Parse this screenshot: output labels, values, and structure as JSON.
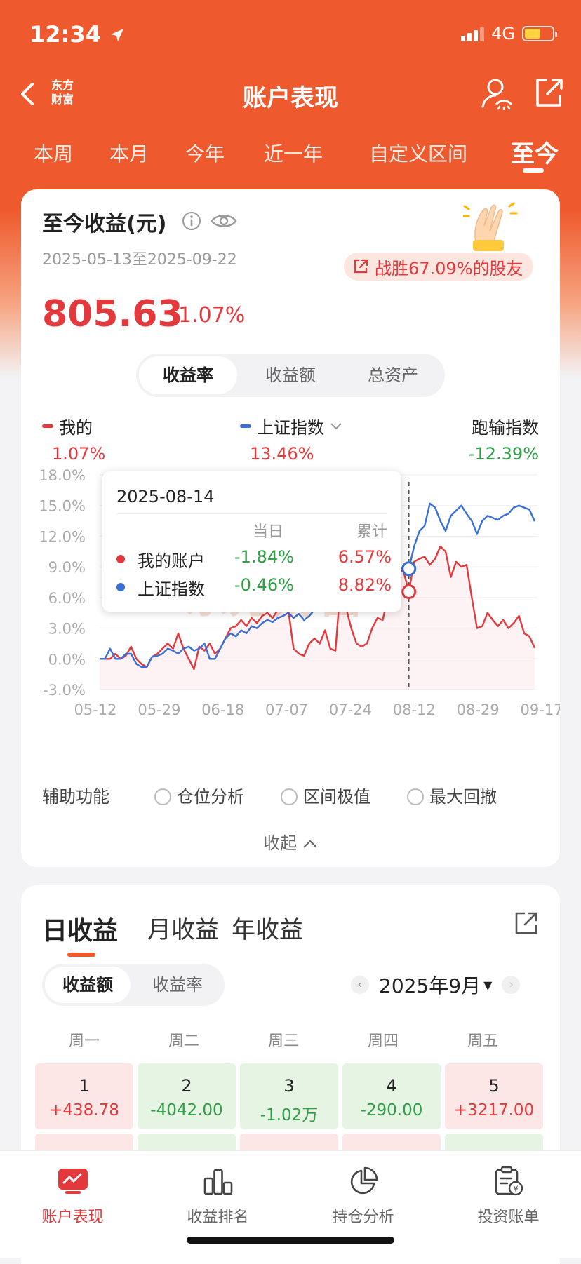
{
  "status": {
    "time": "12:34",
    "network": "4G"
  },
  "nav": {
    "title": "账户表现",
    "logo": "东方财富"
  },
  "ranges": [
    "本周",
    "本月",
    "今年",
    "近一年",
    "自定义区间",
    "至今"
  ],
  "summary": {
    "title": "至今收益(元)",
    "date_range": "2025-05-13至2025-09-22",
    "beat_text": "战胜67.09%的股友",
    "value": "805.63",
    "pct": "1.07%"
  },
  "segment": [
    "收益率",
    "收益额",
    "总资产"
  ],
  "legend": {
    "mine": {
      "label": "我的",
      "value": "1.07%"
    },
    "index": {
      "label": "上证指数",
      "value": "13.46%"
    },
    "diff": {
      "label": "跑输指数",
      "value": "-12.39%"
    }
  },
  "tooltip": {
    "date": "2025-08-14",
    "head_daily": "当日",
    "head_cum": "累计",
    "rows": [
      {
        "name": "我的账户",
        "daily": "-1.84%",
        "cum": "6.57%"
      },
      {
        "name": "上证指数",
        "daily": "-0.46%",
        "cum": "8.82%"
      }
    ]
  },
  "chart_data": {
    "type": "line",
    "y_ticks": [
      "18.0%",
      "15.0%",
      "12.0%",
      "9.0%",
      "6.0%",
      "3.0%",
      "0.0%",
      "-3.0%"
    ],
    "x_ticks": [
      "05-12",
      "05-29",
      "06-18",
      "07-07",
      "07-24",
      "08-12",
      "08-29",
      "09-17"
    ],
    "ylim": [
      -3,
      18
    ],
    "watermark": "东方财富",
    "series": [
      {
        "name": "我的",
        "color": "#e4393c",
        "values": [
          0,
          0,
          0,
          0.5,
          0,
          0.3,
          1.2,
          0,
          -0.5,
          -0.8,
          0.2,
          0.5,
          1,
          1.5,
          1,
          2.5,
          1,
          0,
          -1,
          1.2,
          0.8,
          1.5,
          0.5,
          1,
          2,
          3,
          3.2,
          3.8,
          3.2,
          4,
          3.5,
          4.2,
          4.5,
          4,
          4.8,
          5.2,
          4.8,
          1,
          0.5,
          0.3,
          1.5,
          2,
          1.5,
          2.8,
          1,
          0.8,
          7.5,
          5,
          3,
          1.5,
          1.2,
          1.5,
          3,
          4,
          3.8,
          6,
          8.5,
          8.8,
          8.5,
          6.57,
          9.5,
          9.8,
          10,
          9.2,
          9.8,
          11,
          10.5,
          8,
          9.5,
          9,
          9.2,
          6,
          3,
          3.2,
          4.5,
          3.8,
          3.2,
          3.8,
          3,
          3.5,
          4.2,
          2.5,
          2.2,
          1.07
        ]
      },
      {
        "name": "上证指数",
        "color": "#3b6fd8",
        "values": [
          0,
          0,
          1,
          0,
          0,
          0.5,
          0.5,
          -0.5,
          -0.8,
          -0.8,
          0.2,
          0.3,
          0.5,
          1,
          0.8,
          0.5,
          1,
          1.2,
          0.8,
          1,
          1.5,
          0,
          0,
          1,
          2,
          2.5,
          2.2,
          2.8,
          2.5,
          3.2,
          3,
          3.5,
          3.8,
          3.6,
          4,
          4.2,
          4.5,
          4,
          4.4,
          3.8,
          4.2,
          4.8,
          5,
          5.5,
          6,
          6.5,
          6.8,
          7,
          7.2,
          6.5,
          6,
          6.2,
          7.5,
          8.2,
          8.5,
          8.3,
          8.8,
          8.7,
          8.9,
          8.82,
          11,
          12.5,
          13,
          15.2,
          14.8,
          13.5,
          12.5,
          14,
          14.5,
          15,
          14.2,
          13.5,
          12.2,
          13.5,
          14,
          13.8,
          13.6,
          14,
          14.2,
          14.8,
          15,
          14.8,
          14.6,
          13.46
        ]
      }
    ],
    "highlight_date": "2025-08-14",
    "highlight_index": 59
  },
  "aux": {
    "label": "辅助功能",
    "options": [
      "仓位分析",
      "区间极值",
      "最大回撤"
    ]
  },
  "collapse": "收起",
  "daily": {
    "tabs": [
      "日收益",
      "月收益",
      "年收益"
    ],
    "segment": [
      "收益额",
      "收益率"
    ],
    "month": "2025年9月",
    "weekdays": [
      "周一",
      "周二",
      "周三",
      "周四",
      "周五"
    ],
    "cells": [
      {
        "day": "1",
        "value": "+438.78"
      },
      {
        "day": "2",
        "value": "-4042.00"
      },
      {
        "day": "3",
        "value": "-1.02万"
      },
      {
        "day": "4",
        "value": "-290.00"
      },
      {
        "day": "5",
        "value": "+3217.00"
      }
    ]
  },
  "tabbar": [
    "账户表现",
    "收益排名",
    "持仓分析",
    "投资账单"
  ]
}
